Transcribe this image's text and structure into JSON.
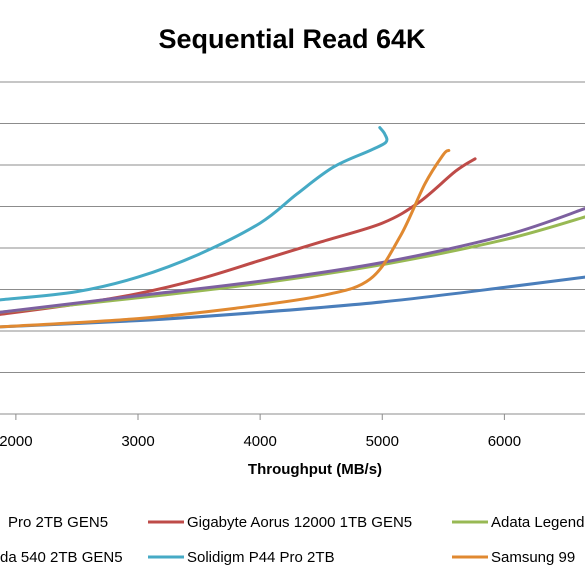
{
  "chart_data": {
    "type": "line",
    "title": "Sequential Read 64K",
    "xlabel": "Throughput  (MB/s)",
    "ylabel": "",
    "x_ticks": [
      2000,
      3000,
      4000,
      5000,
      6000
    ],
    "xlim": [
      1870,
      6660
    ],
    "ylim": [
      0,
      8
    ],
    "grid": true,
    "legend_position": "bottom",
    "series": [
      {
        "name": "Pro 2TB GEN5",
        "color": "#4a7ebb",
        "x": [
          1870,
          3000,
          4000,
          5000,
          6000,
          6660
        ],
        "y": [
          2.1,
          2.25,
          2.45,
          2.7,
          3.05,
          3.3
        ]
      },
      {
        "name": "Gigabyte Aorus 12000 1TB GEN5",
        "color": "#be4b48",
        "x": [
          1870,
          2500,
          3000,
          3500,
          4000,
          4500,
          5000,
          5300,
          5600,
          5760
        ],
        "y": [
          2.4,
          2.65,
          2.9,
          3.25,
          3.7,
          4.15,
          4.6,
          5.1,
          5.85,
          6.15
        ]
      },
      {
        "name": "Adata Legend",
        "color": "#98b954",
        "x": [
          1870,
          3000,
          4000,
          5000,
          6000,
          6660
        ],
        "y": [
          2.45,
          2.8,
          3.15,
          3.6,
          4.2,
          4.75
        ]
      },
      {
        "name": "da 540 2TB GEN5",
        "color": "#7d60a0",
        "x": [
          1870,
          3000,
          4000,
          5000,
          6000,
          6660
        ],
        "y": [
          2.45,
          2.85,
          3.2,
          3.65,
          4.3,
          4.95
        ]
      },
      {
        "name": "Solidigm P44 Pro 2TB",
        "color": "#46aac5",
        "x": [
          1870,
          2500,
          3000,
          3500,
          4000,
          4300,
          4600,
          4900,
          5030,
          5020,
          4980
        ],
        "y": [
          2.75,
          2.95,
          3.3,
          3.85,
          4.6,
          5.3,
          5.95,
          6.35,
          6.55,
          6.75,
          6.9
        ]
      },
      {
        "name": "Samsung 99",
        "color": "#e08931",
        "x": [
          1870,
          3000,
          3800,
          4500,
          4900,
          5150,
          5350,
          5500,
          5545
        ],
        "y": [
          2.1,
          2.3,
          2.55,
          2.85,
          3.25,
          4.3,
          5.55,
          6.25,
          6.35
        ]
      }
    ]
  }
}
